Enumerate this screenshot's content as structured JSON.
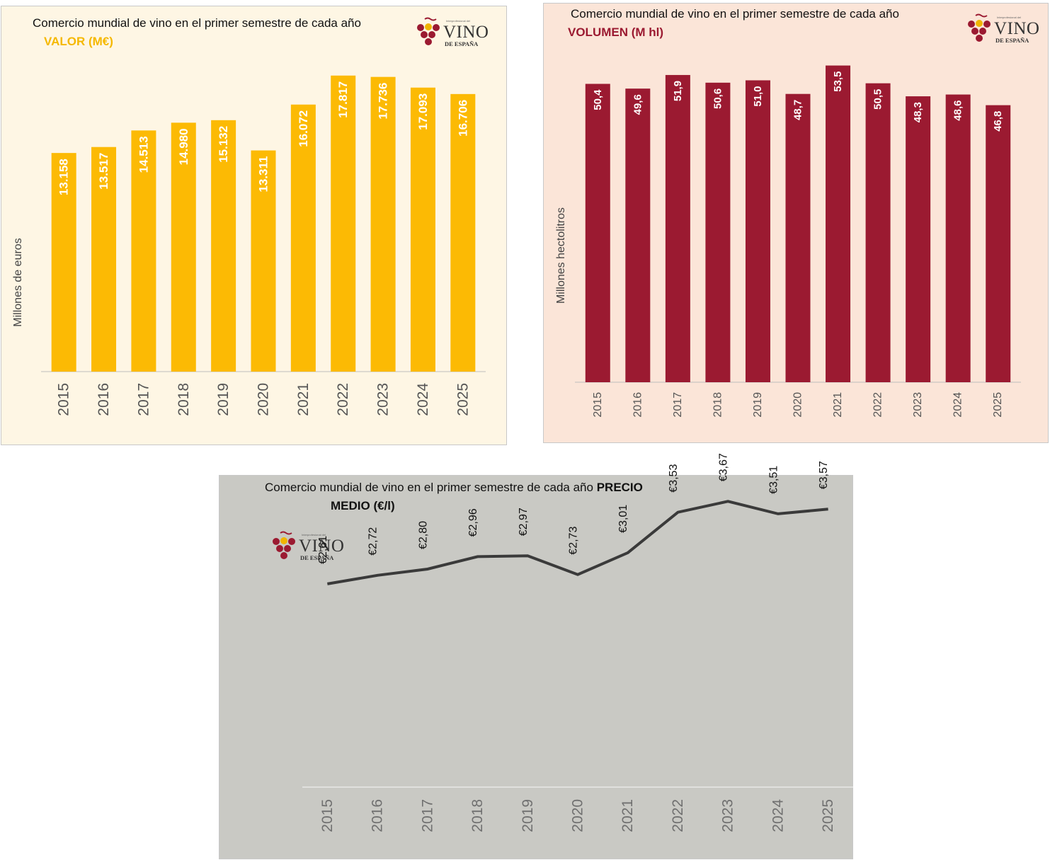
{
  "logo": {
    "brand": "VINO",
    "sub": "DE ESPAÑA",
    "tiny": "Interprofesional del"
  },
  "chart_data": [
    {
      "type": "bar",
      "title": "Comercio mundial de vino en el primer semestre de cada año",
      "subtitle": "VALOR (M€)",
      "ylabel": "Millones de euros",
      "xlabel": "",
      "categories": [
        "2015",
        "2016",
        "2017",
        "2018",
        "2019",
        "2020",
        "2021",
        "2022",
        "2023",
        "2024",
        "2025"
      ],
      "values": [
        13158,
        13517,
        14513,
        14980,
        15132,
        13311,
        16072,
        17817,
        17736,
        17093,
        16706
      ],
      "value_labels": [
        "13.158",
        "13.517",
        "14.513",
        "14.980",
        "15.132",
        "13.311",
        "16.072",
        "17.817",
        "17.736",
        "17.093",
        "16.706"
      ],
      "ylim": [
        0,
        19000
      ],
      "grid": false,
      "colors": {
        "bar": "#fcba04",
        "label": "#ffffff",
        "subtitle": "#f5b800",
        "background": "#fef6e4"
      }
    },
    {
      "type": "bar",
      "title": "Comercio mundial de vino en el primer semestre de cada año",
      "subtitle": "VOLUMEN (M hl)",
      "ylabel": "Millones hectolitros",
      "xlabel": "",
      "categories": [
        "2015",
        "2016",
        "2017",
        "2018",
        "2019",
        "2020",
        "2021",
        "2022",
        "2023",
        "2024",
        "2025"
      ],
      "values": [
        50.4,
        49.6,
        51.9,
        50.6,
        51.0,
        48.7,
        53.5,
        50.5,
        48.3,
        48.6,
        46.8
      ],
      "value_labels": [
        "50,4",
        "49,6",
        "51,9",
        "50,6",
        "51,0",
        "48,7",
        "53,5",
        "50,5",
        "48,3",
        "48,6",
        "46,8"
      ],
      "ylim": [
        0,
        55.6
      ],
      "grid": false,
      "colors": {
        "bar": "#9b1a31",
        "label": "#ffffff",
        "subtitle": "#9b1a31",
        "background": "#fbe5d8"
      }
    },
    {
      "type": "line",
      "title": "Comercio mundial de vino en el primer semestre de cada año",
      "title_bold": "PRECIO",
      "subtitle": "MEDIO (€/l)",
      "ylabel": "",
      "xlabel": "",
      "categories": [
        "2015",
        "2016",
        "2017",
        "2018",
        "2019",
        "2020",
        "2021",
        "2022",
        "2023",
        "2024",
        "2025"
      ],
      "values": [
        2.61,
        2.72,
        2.8,
        2.96,
        2.97,
        2.73,
        3.01,
        3.53,
        3.67,
        3.51,
        3.57
      ],
      "value_labels": [
        "€2,61",
        "€2,72",
        "€2,80",
        "€2,96",
        "€2,97",
        "€2,73",
        "€3,01",
        "€3,53",
        "€3,67",
        "€3,51",
        "€3,57"
      ],
      "ylim": [
        0,
        4
      ],
      "grid": false,
      "colors": {
        "line": "#3a3a3a",
        "label": "#111111",
        "background": "#c9c9c4"
      }
    }
  ]
}
